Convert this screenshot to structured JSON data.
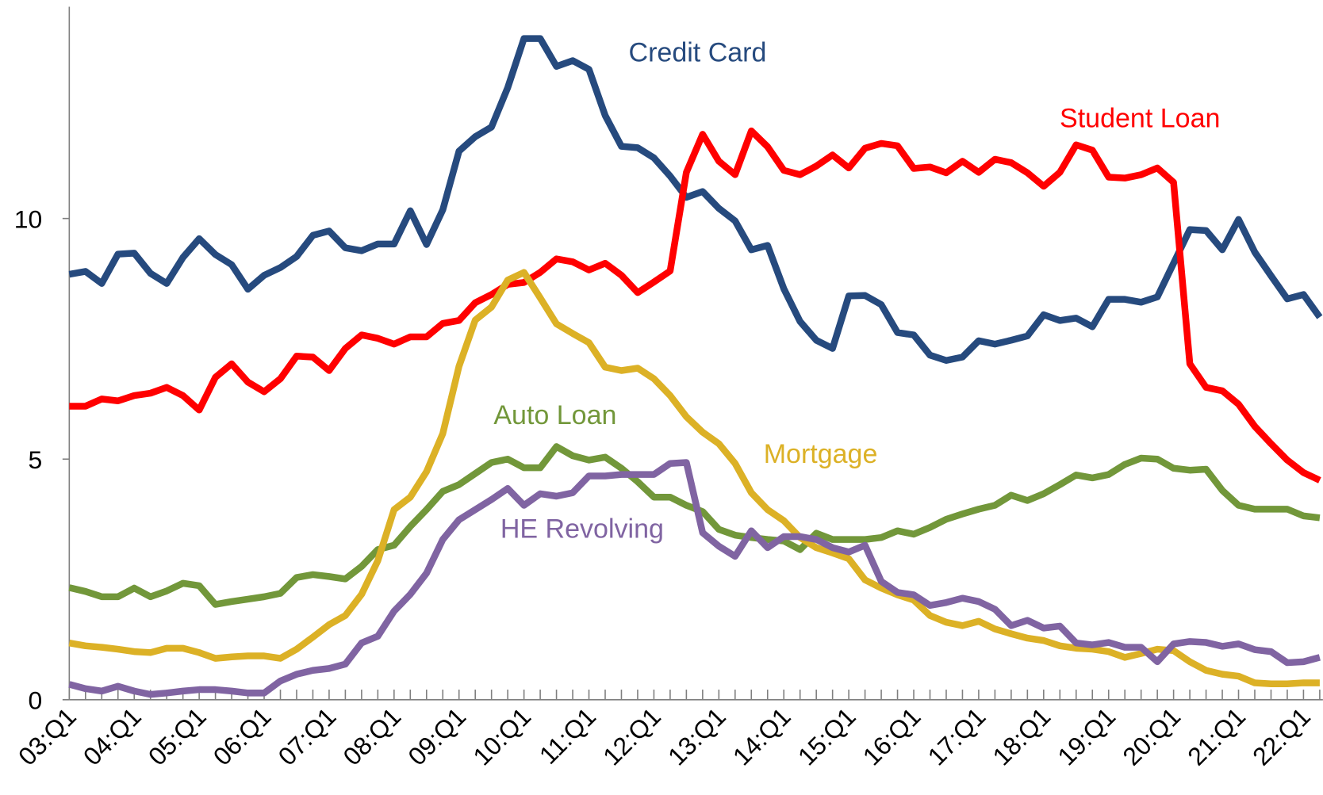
{
  "chart_data": {
    "type": "line",
    "categories": [
      "03:Q1",
      null,
      null,
      null,
      "04:Q1",
      null,
      null,
      null,
      "05:Q1",
      null,
      null,
      null,
      "06:Q1",
      null,
      null,
      null,
      "07:Q1",
      null,
      null,
      null,
      "08:Q1",
      null,
      null,
      null,
      "09:Q1",
      null,
      null,
      null,
      "10:Q1",
      null,
      null,
      null,
      "11:Q1",
      null,
      null,
      null,
      "12:Q1",
      null,
      null,
      null,
      "13:Q1",
      null,
      null,
      null,
      "14:Q1",
      null,
      null,
      null,
      "15:Q1",
      null,
      null,
      null,
      "16:Q1",
      null,
      null,
      null,
      "17:Q1",
      null,
      null,
      null,
      "18:Q1",
      null,
      null,
      null,
      "19:Q1",
      null,
      null,
      null,
      "20:Q1",
      null,
      null,
      null,
      "21:Q1",
      null,
      null,
      null,
      "22:Q1",
      null
    ],
    "ylim": [
      0,
      14.4
    ],
    "yticks": [
      0,
      5,
      10
    ],
    "grid": false,
    "series": [
      {
        "name": "Credit Card",
        "color": "#264a7e",
        "values": [
          8.84,
          8.9,
          8.65,
          9.26,
          9.28,
          8.86,
          8.65,
          9.19,
          9.58,
          9.25,
          9.04,
          8.53,
          8.82,
          8.98,
          9.21,
          9.65,
          9.74,
          9.39,
          9.33,
          9.47,
          9.47,
          10.16,
          9.46,
          10.18,
          11.4,
          11.7,
          11.9,
          12.72,
          13.74,
          13.74,
          13.16,
          13.28,
          13.1,
          12.14,
          11.5,
          11.47,
          11.26,
          10.88,
          10.44,
          10.56,
          10.21,
          9.95,
          9.35,
          9.44,
          8.54,
          7.86,
          7.47,
          7.3,
          8.39,
          8.4,
          8.21,
          7.63,
          7.58,
          7.16,
          7.05,
          7.12,
          7.46,
          7.39,
          7.47,
          7.56,
          8.0,
          7.88,
          7.93,
          7.75,
          8.32,
          8.32,
          8.26,
          8.37,
          9.07,
          9.77,
          9.75,
          9.35,
          9.98,
          9.3,
          8.81,
          8.33,
          8.42,
          7.95
        ]
      },
      {
        "name": "Student Loan",
        "color": "#ff0000",
        "values": [
          6.1,
          6.1,
          6.25,
          6.21,
          6.32,
          6.37,
          6.49,
          6.32,
          6.02,
          6.7,
          6.98,
          6.6,
          6.4,
          6.67,
          7.14,
          7.12,
          6.84,
          7.3,
          7.58,
          7.51,
          7.39,
          7.54,
          7.54,
          7.82,
          7.88,
          8.25,
          8.42,
          8.63,
          8.67,
          8.88,
          9.16,
          9.1,
          8.93,
          9.07,
          8.82,
          8.46,
          8.68,
          8.91,
          10.96,
          11.75,
          11.19,
          10.91,
          11.82,
          11.49,
          11.0,
          10.91,
          11.09,
          11.32,
          11.05,
          11.46,
          11.56,
          11.51,
          11.04,
          11.07,
          10.95,
          11.19,
          10.96,
          11.23,
          11.16,
          10.95,
          10.67,
          10.96,
          11.53,
          11.42,
          10.86,
          10.84,
          10.91,
          11.05,
          10.75,
          6.98,
          6.49,
          6.42,
          6.14,
          5.68,
          5.32,
          4.98,
          4.72,
          4.56
        ]
      },
      {
        "name": "Auto Loan",
        "color": "#72973a",
        "values": [
          2.33,
          2.25,
          2.14,
          2.14,
          2.32,
          2.14,
          2.26,
          2.42,
          2.37,
          1.98,
          2.04,
          2.09,
          2.14,
          2.21,
          2.54,
          2.6,
          2.56,
          2.51,
          2.77,
          3.12,
          3.21,
          3.6,
          3.95,
          4.33,
          4.47,
          4.7,
          4.93,
          5.0,
          4.82,
          4.82,
          5.26,
          5.07,
          4.98,
          5.04,
          4.81,
          4.53,
          4.21,
          4.21,
          4.04,
          3.91,
          3.54,
          3.42,
          3.37,
          3.33,
          3.3,
          3.12,
          3.46,
          3.33,
          3.33,
          3.33,
          3.37,
          3.51,
          3.44,
          3.58,
          3.75,
          3.86,
          3.96,
          4.04,
          4.25,
          4.14,
          4.28,
          4.47,
          4.67,
          4.61,
          4.68,
          4.89,
          5.02,
          5.0,
          4.81,
          4.77,
          4.79,
          4.35,
          4.04,
          3.96,
          3.96,
          3.96,
          3.82,
          3.78
        ]
      },
      {
        "name": "Mortgage",
        "color": "#dcb126",
        "values": [
          1.18,
          1.12,
          1.09,
          1.05,
          1.0,
          0.98,
          1.07,
          1.07,
          0.98,
          0.86,
          0.89,
          0.91,
          0.91,
          0.86,
          1.05,
          1.3,
          1.56,
          1.75,
          2.19,
          2.89,
          3.95,
          4.21,
          4.74,
          5.53,
          6.93,
          7.89,
          8.16,
          8.72,
          8.88,
          8.35,
          7.81,
          7.61,
          7.42,
          6.91,
          6.84,
          6.89,
          6.67,
          6.32,
          5.88,
          5.56,
          5.32,
          4.91,
          4.3,
          3.95,
          3.72,
          3.37,
          3.16,
          3.05,
          2.93,
          2.49,
          2.32,
          2.18,
          2.07,
          1.75,
          1.61,
          1.54,
          1.63,
          1.47,
          1.37,
          1.28,
          1.23,
          1.12,
          1.07,
          1.05,
          1.0,
          0.88,
          0.96,
          1.05,
          1.02,
          0.79,
          0.61,
          0.53,
          0.49,
          0.35,
          0.33,
          0.33,
          0.35,
          0.35
        ]
      },
      {
        "name": "HE Revolving",
        "color": "#8064a2",
        "values": [
          0.32,
          0.23,
          0.18,
          0.28,
          0.18,
          0.11,
          0.14,
          0.18,
          0.21,
          0.21,
          0.18,
          0.14,
          0.14,
          0.39,
          0.53,
          0.61,
          0.65,
          0.74,
          1.18,
          1.32,
          1.84,
          2.19,
          2.63,
          3.33,
          3.74,
          3.95,
          4.16,
          4.39,
          4.04,
          4.28,
          4.23,
          4.3,
          4.65,
          4.65,
          4.68,
          4.68,
          4.68,
          4.91,
          4.93,
          3.47,
          3.19,
          2.98,
          3.51,
          3.16,
          3.39,
          3.39,
          3.33,
          3.16,
          3.07,
          3.21,
          2.46,
          2.23,
          2.18,
          1.96,
          2.02,
          2.11,
          2.04,
          1.88,
          1.54,
          1.65,
          1.49,
          1.53,
          1.18,
          1.14,
          1.19,
          1.09,
          1.09,
          0.79,
          1.16,
          1.21,
          1.19,
          1.11,
          1.16,
          1.04,
          1.0,
          0.77,
          0.79,
          0.88
        ]
      }
    ]
  }
}
